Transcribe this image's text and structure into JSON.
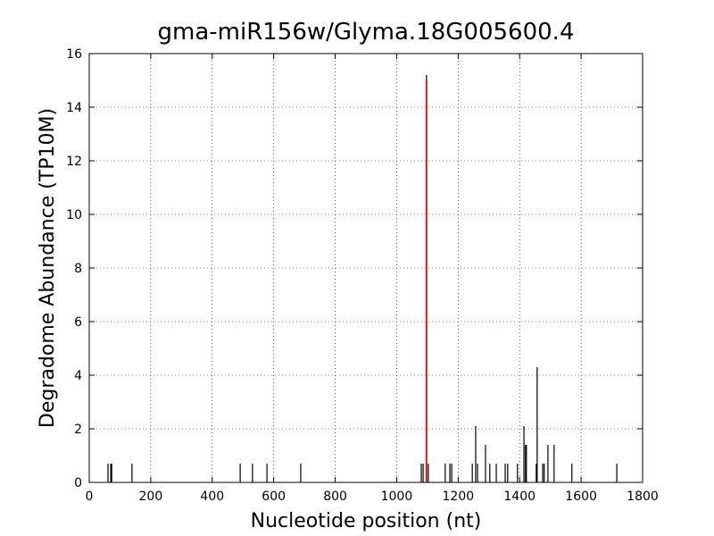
{
  "chart_data": {
    "type": "vlines",
    "title": "gma-miR156w/Glyma.18G005600.4",
    "x_label": "Nucleotide position (nt)",
    "y_label": "Degradome Abundance (TP10M)",
    "x": [
      61,
      70,
      73,
      139,
      491,
      531,
      578,
      688,
      1080,
      1086,
      1097,
      1103,
      1158,
      1173,
      1179,
      1246,
      1257,
      1263,
      1289,
      1303,
      1324,
      1353,
      1361,
      1393,
      1414,
      1419,
      1422,
      1454,
      1457,
      1475,
      1480,
      1492,
      1512,
      1570,
      1716
    ],
    "values": [
      0.7,
      0.7,
      0.7,
      0.7,
      0.7,
      0.7,
      0.7,
      0.7,
      0.7,
      0.7,
      15.2,
      0.7,
      0.7,
      0.7,
      0.7,
      0.7,
      2.1,
      0.7,
      1.4,
      0.7,
      0.7,
      0.7,
      0.7,
      0.7,
      2.1,
      1.4,
      1.4,
      0.7,
      4.3,
      0.7,
      0.7,
      1.4,
      1.4,
      0.7,
      0.7
    ],
    "color": "#000000",
    "highlight": {
      "x": 1097,
      "value": 15,
      "color": "#e31a1c"
    },
    "xlim": [
      0,
      1800
    ],
    "xticks": [
      0,
      200,
      400,
      600,
      800,
      1000,
      1200,
      1400,
      1600,
      1800
    ],
    "ylim": [
      0,
      16
    ],
    "yticks": [
      0,
      2,
      4,
      6,
      8,
      10,
      12,
      14,
      16
    ],
    "grid": true
  }
}
